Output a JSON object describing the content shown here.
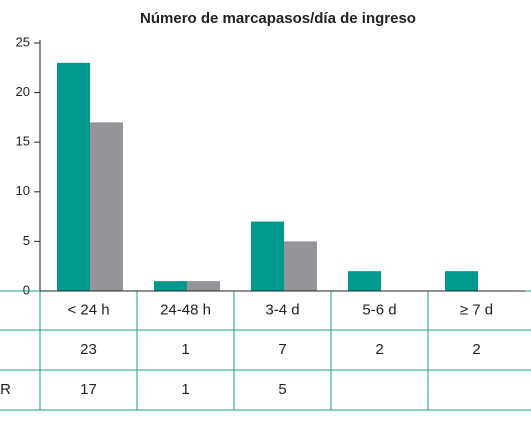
{
  "chart_data": {
    "type": "bar",
    "title": "Número de marcapasos/día de ingreso",
    "categories": [
      "< 24 h",
      "24-48 h",
      "3-4 d",
      "5-6 d",
      "≥ 7 d"
    ],
    "series": [
      {
        "color": "#00998f",
        "values": [
          23,
          1,
          7,
          2,
          2
        ]
      },
      {
        "name": "R",
        "color": "#939598",
        "values": [
          17,
          1,
          5,
          null,
          null
        ]
      }
    ],
    "ylim": [
      0,
      25
    ],
    "yticks": [
      0,
      5,
      10,
      15,
      20,
      25
    ],
    "grid": false
  }
}
